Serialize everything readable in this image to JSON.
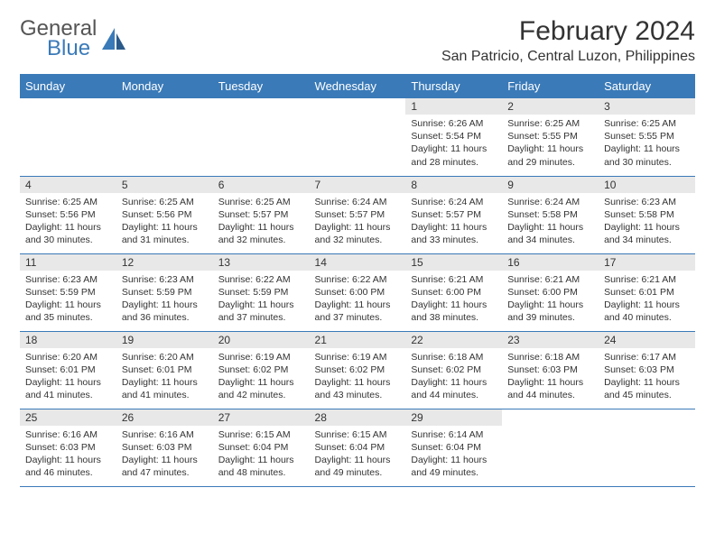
{
  "logo": {
    "word1": "General",
    "word2": "Blue"
  },
  "title": "February 2024",
  "location": "San Patricio, Central Luzon, Philippines",
  "colors": {
    "header_bg": "#3a7ab8",
    "header_fg": "#ffffff",
    "daynum_bg": "#e8e8e8",
    "border": "#3a7ab8",
    "logo_gray": "#555555",
    "logo_blue": "#3a7ab8",
    "text": "#333333",
    "page_bg": "#ffffff"
  },
  "fonts": {
    "title_size": 30,
    "location_size": 16,
    "weekday_size": 13,
    "daynum_size": 12,
    "body_size": 10.5
  },
  "weekdays": [
    "Sunday",
    "Monday",
    "Tuesday",
    "Wednesday",
    "Thursday",
    "Friday",
    "Saturday"
  ],
  "grid": [
    [
      {
        "n": "",
        "sr": "",
        "ss": "",
        "dl": ""
      },
      {
        "n": "",
        "sr": "",
        "ss": "",
        "dl": ""
      },
      {
        "n": "",
        "sr": "",
        "ss": "",
        "dl": ""
      },
      {
        "n": "",
        "sr": "",
        "ss": "",
        "dl": ""
      },
      {
        "n": "1",
        "sr": "Sunrise: 6:26 AM",
        "ss": "Sunset: 5:54 PM",
        "dl": "Daylight: 11 hours and 28 minutes."
      },
      {
        "n": "2",
        "sr": "Sunrise: 6:25 AM",
        "ss": "Sunset: 5:55 PM",
        "dl": "Daylight: 11 hours and 29 minutes."
      },
      {
        "n": "3",
        "sr": "Sunrise: 6:25 AM",
        "ss": "Sunset: 5:55 PM",
        "dl": "Daylight: 11 hours and 30 minutes."
      }
    ],
    [
      {
        "n": "4",
        "sr": "Sunrise: 6:25 AM",
        "ss": "Sunset: 5:56 PM",
        "dl": "Daylight: 11 hours and 30 minutes."
      },
      {
        "n": "5",
        "sr": "Sunrise: 6:25 AM",
        "ss": "Sunset: 5:56 PM",
        "dl": "Daylight: 11 hours and 31 minutes."
      },
      {
        "n": "6",
        "sr": "Sunrise: 6:25 AM",
        "ss": "Sunset: 5:57 PM",
        "dl": "Daylight: 11 hours and 32 minutes."
      },
      {
        "n": "7",
        "sr": "Sunrise: 6:24 AM",
        "ss": "Sunset: 5:57 PM",
        "dl": "Daylight: 11 hours and 32 minutes."
      },
      {
        "n": "8",
        "sr": "Sunrise: 6:24 AM",
        "ss": "Sunset: 5:57 PM",
        "dl": "Daylight: 11 hours and 33 minutes."
      },
      {
        "n": "9",
        "sr": "Sunrise: 6:24 AM",
        "ss": "Sunset: 5:58 PM",
        "dl": "Daylight: 11 hours and 34 minutes."
      },
      {
        "n": "10",
        "sr": "Sunrise: 6:23 AM",
        "ss": "Sunset: 5:58 PM",
        "dl": "Daylight: 11 hours and 34 minutes."
      }
    ],
    [
      {
        "n": "11",
        "sr": "Sunrise: 6:23 AM",
        "ss": "Sunset: 5:59 PM",
        "dl": "Daylight: 11 hours and 35 minutes."
      },
      {
        "n": "12",
        "sr": "Sunrise: 6:23 AM",
        "ss": "Sunset: 5:59 PM",
        "dl": "Daylight: 11 hours and 36 minutes."
      },
      {
        "n": "13",
        "sr": "Sunrise: 6:22 AM",
        "ss": "Sunset: 5:59 PM",
        "dl": "Daylight: 11 hours and 37 minutes."
      },
      {
        "n": "14",
        "sr": "Sunrise: 6:22 AM",
        "ss": "Sunset: 6:00 PM",
        "dl": "Daylight: 11 hours and 37 minutes."
      },
      {
        "n": "15",
        "sr": "Sunrise: 6:21 AM",
        "ss": "Sunset: 6:00 PM",
        "dl": "Daylight: 11 hours and 38 minutes."
      },
      {
        "n": "16",
        "sr": "Sunrise: 6:21 AM",
        "ss": "Sunset: 6:00 PM",
        "dl": "Daylight: 11 hours and 39 minutes."
      },
      {
        "n": "17",
        "sr": "Sunrise: 6:21 AM",
        "ss": "Sunset: 6:01 PM",
        "dl": "Daylight: 11 hours and 40 minutes."
      }
    ],
    [
      {
        "n": "18",
        "sr": "Sunrise: 6:20 AM",
        "ss": "Sunset: 6:01 PM",
        "dl": "Daylight: 11 hours and 41 minutes."
      },
      {
        "n": "19",
        "sr": "Sunrise: 6:20 AM",
        "ss": "Sunset: 6:01 PM",
        "dl": "Daylight: 11 hours and 41 minutes."
      },
      {
        "n": "20",
        "sr": "Sunrise: 6:19 AM",
        "ss": "Sunset: 6:02 PM",
        "dl": "Daylight: 11 hours and 42 minutes."
      },
      {
        "n": "21",
        "sr": "Sunrise: 6:19 AM",
        "ss": "Sunset: 6:02 PM",
        "dl": "Daylight: 11 hours and 43 minutes."
      },
      {
        "n": "22",
        "sr": "Sunrise: 6:18 AM",
        "ss": "Sunset: 6:02 PM",
        "dl": "Daylight: 11 hours and 44 minutes."
      },
      {
        "n": "23",
        "sr": "Sunrise: 6:18 AM",
        "ss": "Sunset: 6:03 PM",
        "dl": "Daylight: 11 hours and 44 minutes."
      },
      {
        "n": "24",
        "sr": "Sunrise: 6:17 AM",
        "ss": "Sunset: 6:03 PM",
        "dl": "Daylight: 11 hours and 45 minutes."
      }
    ],
    [
      {
        "n": "25",
        "sr": "Sunrise: 6:16 AM",
        "ss": "Sunset: 6:03 PM",
        "dl": "Daylight: 11 hours and 46 minutes."
      },
      {
        "n": "26",
        "sr": "Sunrise: 6:16 AM",
        "ss": "Sunset: 6:03 PM",
        "dl": "Daylight: 11 hours and 47 minutes."
      },
      {
        "n": "27",
        "sr": "Sunrise: 6:15 AM",
        "ss": "Sunset: 6:04 PM",
        "dl": "Daylight: 11 hours and 48 minutes."
      },
      {
        "n": "28",
        "sr": "Sunrise: 6:15 AM",
        "ss": "Sunset: 6:04 PM",
        "dl": "Daylight: 11 hours and 49 minutes."
      },
      {
        "n": "29",
        "sr": "Sunrise: 6:14 AM",
        "ss": "Sunset: 6:04 PM",
        "dl": "Daylight: 11 hours and 49 minutes."
      },
      {
        "n": "",
        "sr": "",
        "ss": "",
        "dl": ""
      },
      {
        "n": "",
        "sr": "",
        "ss": "",
        "dl": ""
      }
    ]
  ]
}
